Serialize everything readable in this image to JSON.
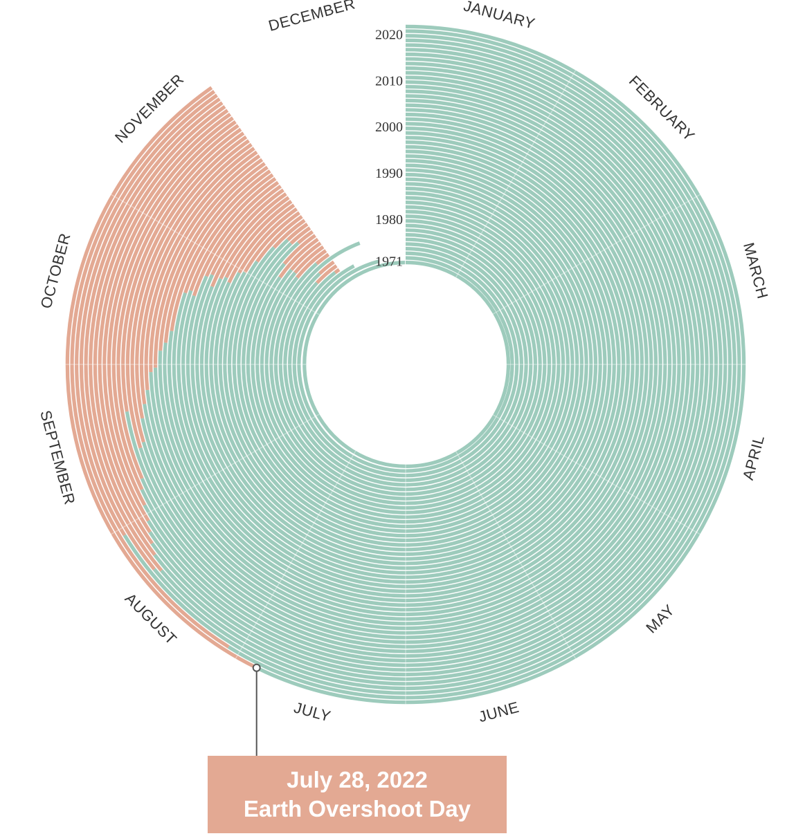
{
  "chart_data": {
    "type": "radial_bar",
    "colors": {
      "before_overshoot": "#9dcbbc",
      "after_overshoot": "#e3a993",
      "background": "#ffffff"
    },
    "months": [
      "JANUARY",
      "FEBRUARY",
      "MARCH",
      "APRIL",
      "MAY",
      "JUNE",
      "JULY",
      "AUGUST",
      "SEPTEMBER",
      "OCTOBER",
      "NOVEMBER",
      "DECEMBER"
    ],
    "year_ticks": [
      "2020",
      "2010",
      "2000",
      "1990",
      "1980",
      "1971"
    ],
    "first_year": 1971,
    "last_year": 2022,
    "overshoot_day_of_year": [
      365,
      350,
      337,
      327,
      317,
      321,
      344,
      323,
      313,
      314,
      314,
      309,
      314,
      323,
      321,
      321,
      316,
      309,
      304,
      303,
      299,
      300,
      299,
      296,
      299,
      298,
      292,
      293,
      292,
      282,
      279,
      277,
      273,
      272,
      268,
      265,
      262,
      257,
      256,
      264,
      250,
      248,
      245,
      242,
      240,
      238,
      236,
      233,
      234,
      242,
      215,
      209
    ],
    "annotation": {
      "date_label": "July 28, 2022",
      "label": "Earth Overshoot Day"
    }
  }
}
